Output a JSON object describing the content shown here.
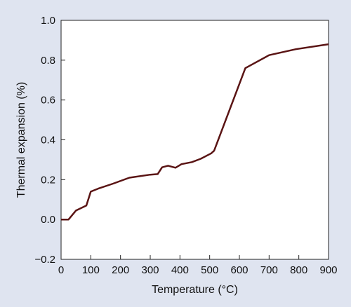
{
  "chart_data": {
    "type": "line",
    "title": "",
    "xlabel": "Temperature (°C)",
    "ylabel": "Thermal expansion (%)",
    "xlim": [
      0,
      900
    ],
    "ylim": [
      -0.2,
      1.0
    ],
    "xticks": [
      0,
      100,
      200,
      300,
      400,
      500,
      600,
      700,
      800,
      900
    ],
    "yticks": [
      -0.2,
      0.0,
      0.2,
      0.4,
      0.6,
      0.8,
      1.0
    ],
    "xtick_labels": [
      "0",
      "100",
      "200",
      "300",
      "400",
      "500",
      "600",
      "700",
      "800",
      "900"
    ],
    "ytick_labels": [
      "−0.2",
      "0.0",
      "0.2",
      "0.4",
      "0.6",
      "0.8",
      "1.0"
    ],
    "grid": false,
    "legend": "none",
    "series": [
      {
        "color": "#5a1414",
        "x": [
          0,
          25,
          50,
          85,
          100,
          125,
          175,
          230,
          300,
          325,
          340,
          360,
          385,
          405,
          440,
          470,
          505,
          515,
          620,
          700,
          790,
          900
        ],
        "y": [
          0.0,
          0.0,
          0.045,
          0.07,
          0.14,
          0.155,
          0.18,
          0.21,
          0.225,
          0.228,
          0.262,
          0.27,
          0.26,
          0.278,
          0.288,
          0.305,
          0.332,
          0.345,
          0.76,
          0.825,
          0.855,
          0.88
        ]
      }
    ]
  }
}
